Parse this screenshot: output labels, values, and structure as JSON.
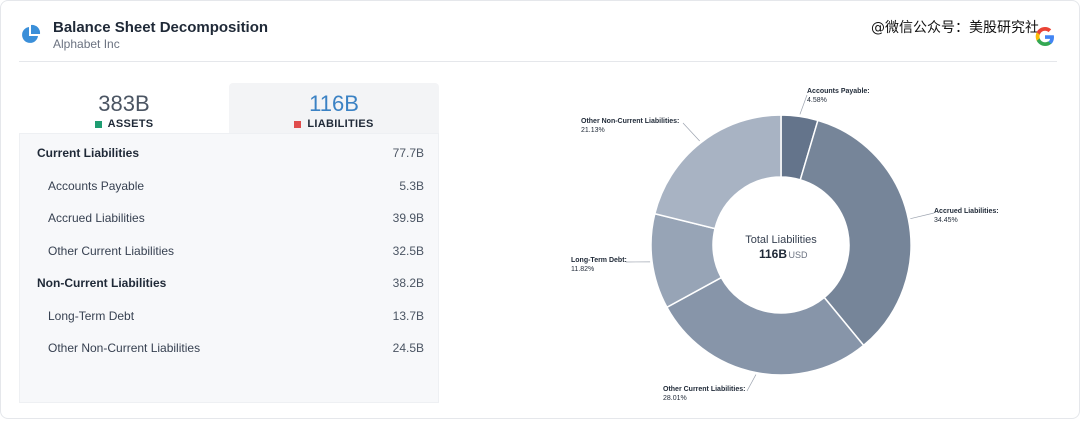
{
  "header": {
    "title": "Balance Sheet Decomposition",
    "subtitle": "Alphabet Inc",
    "watermark": "@微信公众号：美股研究社"
  },
  "tabs": [
    {
      "value": "383B",
      "label": "ASSETS",
      "color": "#1f9d72"
    },
    {
      "value": "116B",
      "label": "LIABILITIES",
      "color": "#e04d4d"
    }
  ],
  "table": {
    "rows": [
      {
        "name": "Current Liabilities",
        "value": "77.7B",
        "level": "group"
      },
      {
        "name": "Accounts Payable",
        "value": "5.3B",
        "level": "item"
      },
      {
        "name": "Accrued Liabilities",
        "value": "39.9B",
        "level": "item"
      },
      {
        "name": "Other Current Liabilities",
        "value": "32.5B",
        "level": "item"
      },
      {
        "name": "Non-Current Liabilities",
        "value": "38.2B",
        "level": "group"
      },
      {
        "name": "Long-Term Debt",
        "value": "13.7B",
        "level": "item"
      },
      {
        "name": "Other Non-Current Liabilities",
        "value": "24.5B",
        "level": "item"
      }
    ]
  },
  "chart_data": {
    "type": "pie",
    "center_title": "Total Liabilities",
    "center_value": "116B",
    "center_unit": "USD",
    "slices": [
      {
        "name": "Accounts Payable",
        "label": "Accounts Payable:",
        "pct_label": "4.58%",
        "value": 4.58,
        "color": "#64748b"
      },
      {
        "name": "Accrued Liabilities",
        "label": "Accrued Liabilities:",
        "pct_label": "34.45%",
        "value": 34.45,
        "color": "#768599"
      },
      {
        "name": "Other Current Liabilities",
        "label": "Other Current Liabilities:",
        "pct_label": "28.01%",
        "value": 28.01,
        "color": "#8795a9"
      },
      {
        "name": "Long-Term Debt",
        "label": "Long-Term Debt:",
        "pct_label": "11.82%",
        "value": 11.82,
        "color": "#97a4b6"
      },
      {
        "name": "Other Non-Current Liabilities",
        "label": "Other Non-Current Liabilities:",
        "pct_label": "21.13%",
        "value": 21.13,
        "color": "#a8b3c3"
      }
    ]
  }
}
